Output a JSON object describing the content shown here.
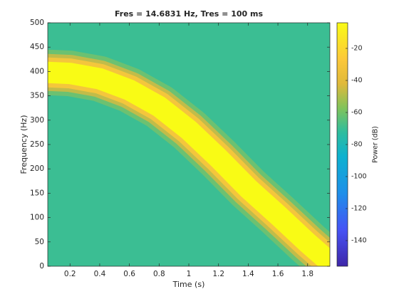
{
  "chart_data": {
    "type": "spectrogram",
    "title": "Fres = 14.6831 Hz, Tres = 100 ms",
    "xlabel": "Time (s)",
    "ylabel": "Frequency (Hz)",
    "colorbar_label": "Power (dB)",
    "xlim": [
      0.05,
      1.95
    ],
    "xticks": [
      0.2,
      0.4,
      0.6,
      0.8,
      1,
      1.2,
      1.4,
      1.6,
      1.8
    ],
    "ylim": [
      0,
      500
    ],
    "yticks": [
      0,
      50,
      100,
      150,
      200,
      250,
      300,
      350,
      400,
      450,
      500
    ],
    "clim": [
      -156,
      -4
    ],
    "cticks": [
      -140,
      -120,
      -100,
      -80,
      -60,
      -40,
      -20
    ],
    "colormap": "parula",
    "background_power": -70,
    "ridge": {
      "x": [
        0.05,
        0.2,
        0.4,
        0.6,
        0.8,
        1.0,
        1.2,
        1.4,
        1.6,
        1.8,
        1.95
      ],
      "values": [
        398,
        396,
        385,
        362,
        328,
        280,
        222,
        160,
        105,
        48,
        8
      ],
      "power": -4
    }
  }
}
